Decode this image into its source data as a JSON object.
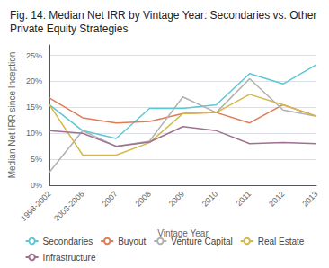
{
  "chart_data": {
    "type": "line",
    "title": "Fig. 14: Median Net IRR by Vintage Year: Secondaries vs. Other Private Equity Strategies",
    "xlabel": "Vintage Year",
    "ylabel": "Median Net IRR since Inception",
    "categories": [
      "1998-2002",
      "2003-2006",
      "2007",
      "2008",
      "2009",
      "2010",
      "2011",
      "2012",
      "2013"
    ],
    "series": [
      {
        "name": "Secondaries",
        "color": "#5bc8d5",
        "values": [
          0.155,
          0.105,
          0.09,
          0.148,
          0.148,
          0.155,
          0.215,
          0.195,
          0.232
        ]
      },
      {
        "name": "Buyout",
        "color": "#e07b54",
        "values": [
          0.168,
          0.13,
          0.12,
          0.123,
          0.138,
          0.14,
          0.12,
          0.155,
          0.133
        ]
      },
      {
        "name": "Venture Capital",
        "color": "#b0b0b0",
        "values": [
          0.025,
          0.105,
          0.075,
          0.085,
          0.17,
          0.14,
          0.205,
          0.145,
          0.133
        ]
      },
      {
        "name": "Real Estate",
        "color": "#d4b84a",
        "values": [
          0.155,
          0.058,
          0.058,
          0.082,
          0.138,
          0.14,
          0.175,
          0.155,
          0.133
        ]
      },
      {
        "name": "Infrastructure",
        "color": "#a07090",
        "values": [
          0.105,
          0.1,
          0.075,
          0.083,
          0.113,
          0.105,
          0.08,
          0.082,
          0.08
        ]
      }
    ],
    "ylim": [
      0,
      0.27
    ],
    "yticks": [
      {
        "value": 0,
        "label": "0%"
      },
      {
        "value": 0.05,
        "label": "5%"
      },
      {
        "value": 0.1,
        "label": "10%"
      },
      {
        "value": 0.15,
        "label": "15%"
      },
      {
        "value": 0.2,
        "label": "20%"
      },
      {
        "value": 0.25,
        "label": "25%"
      }
    ],
    "grid": true,
    "legend": "bottom"
  }
}
